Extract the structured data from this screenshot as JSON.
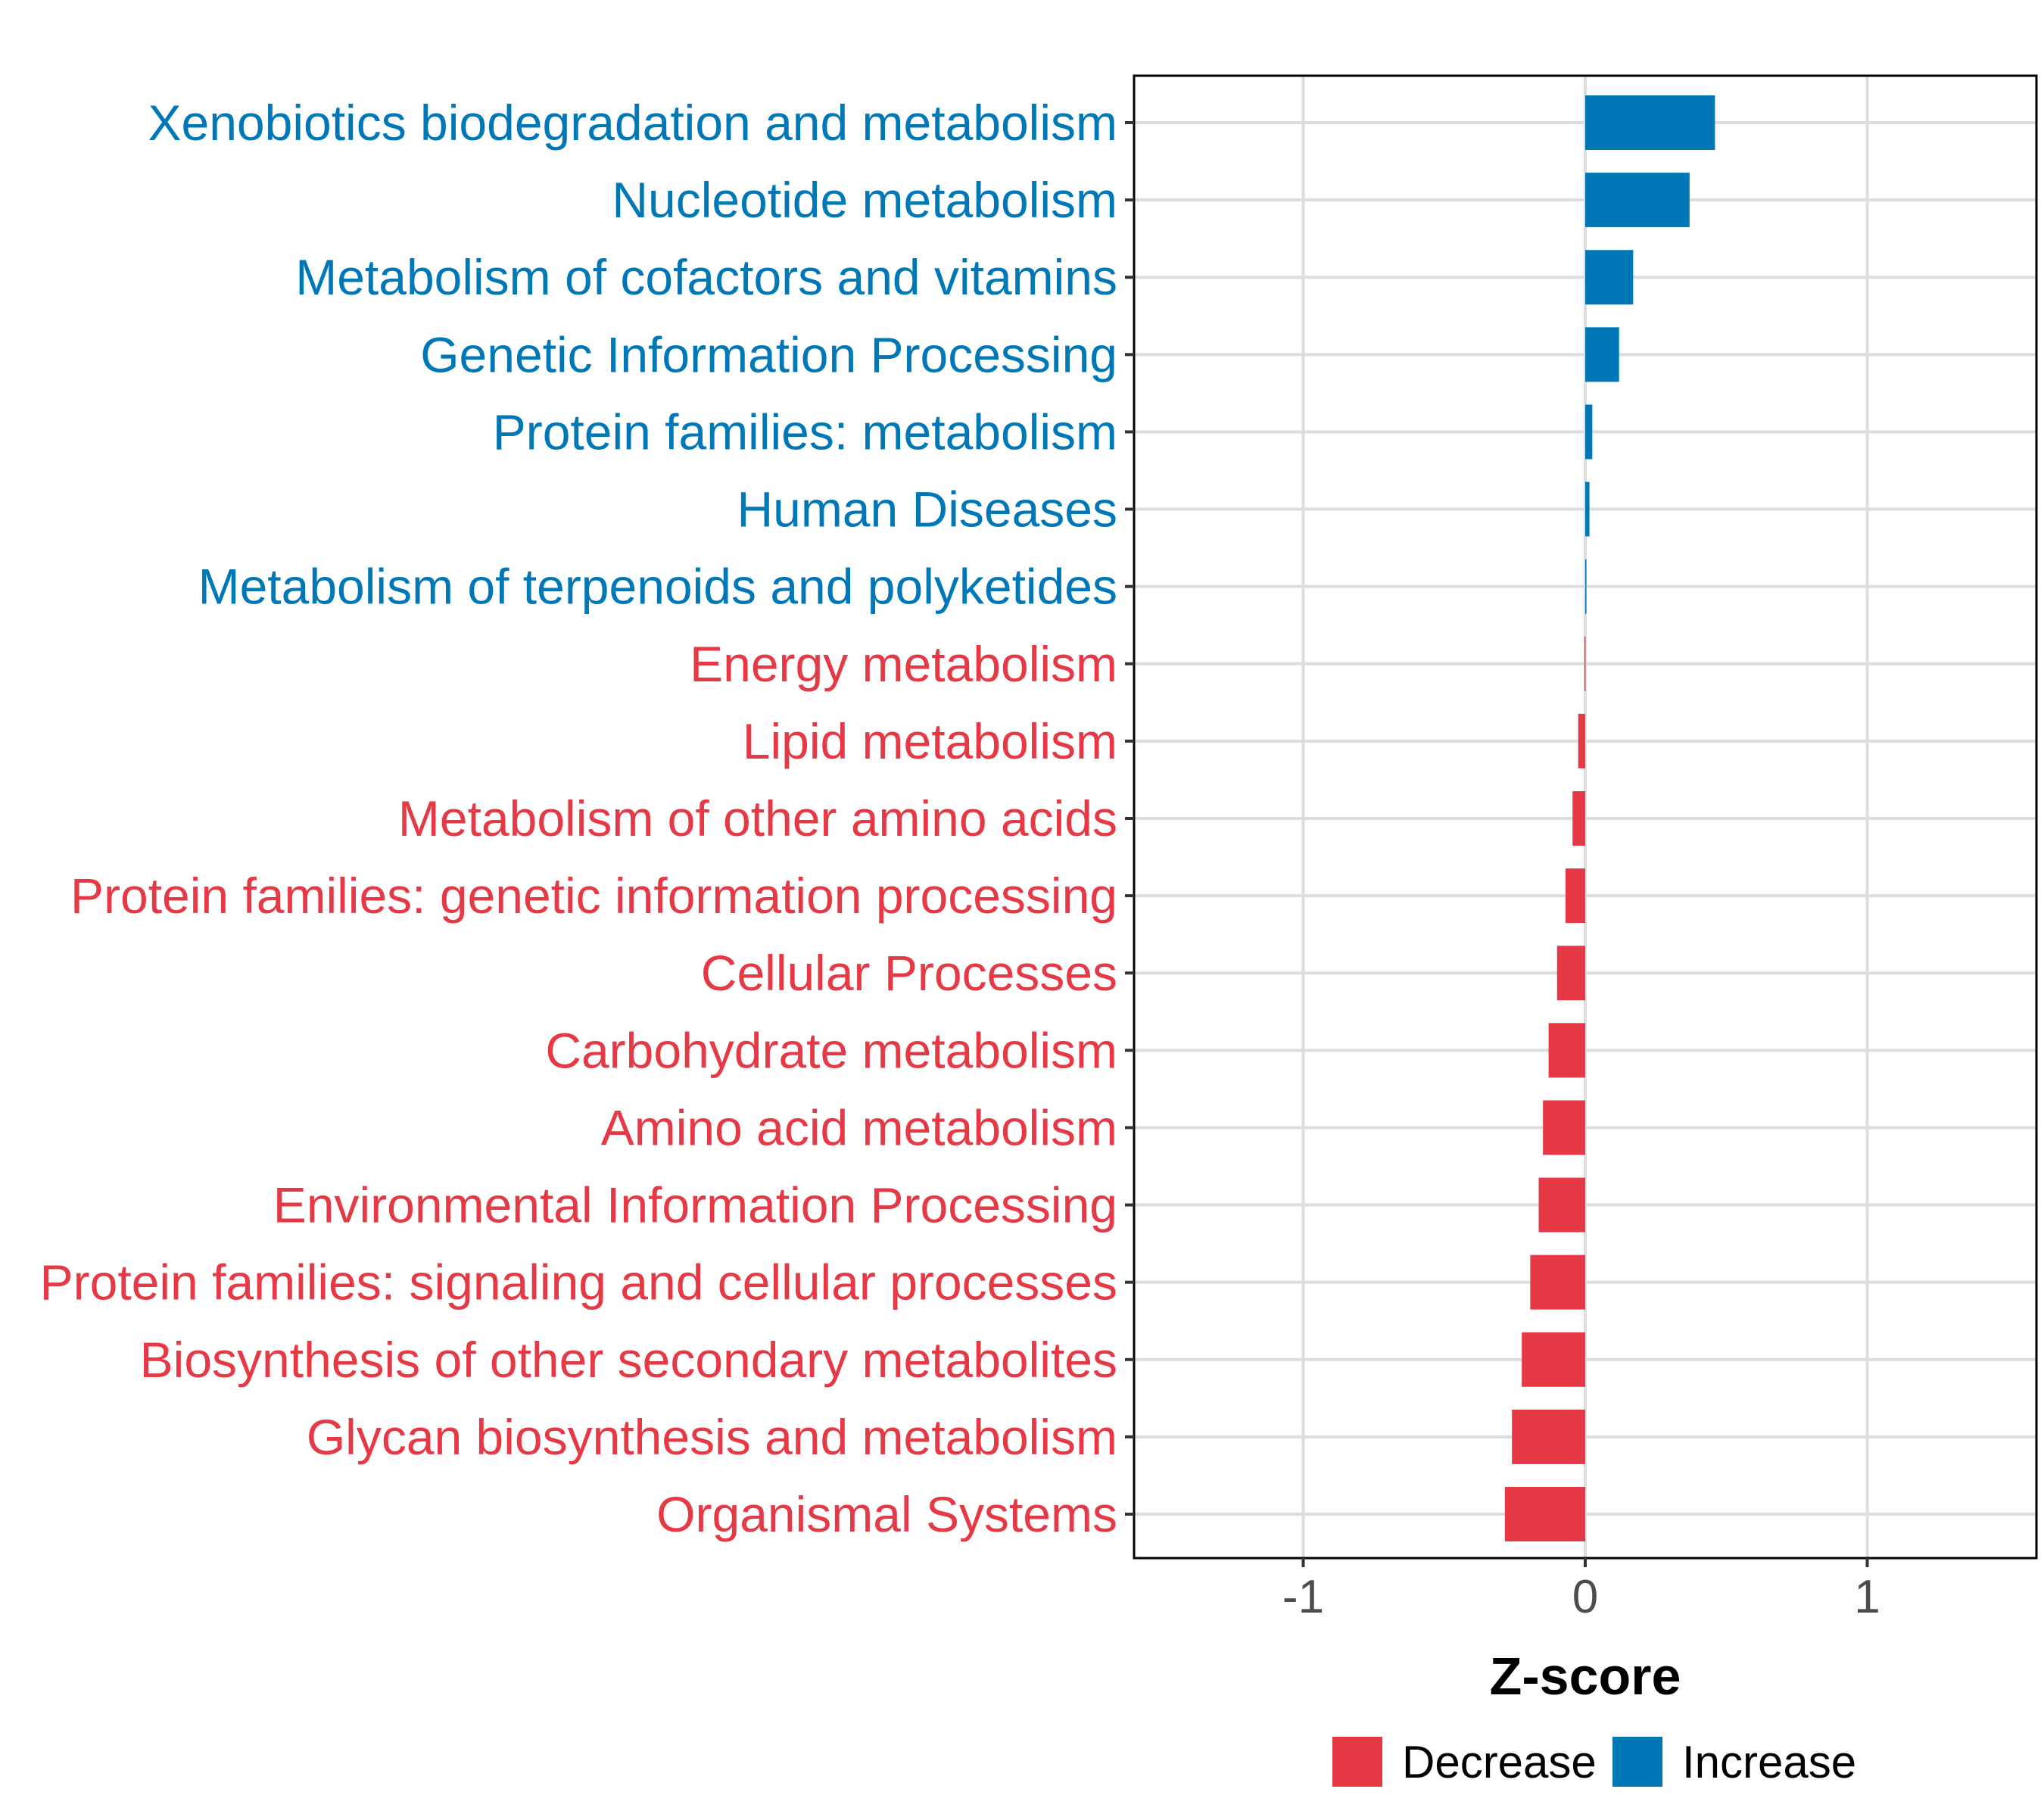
{
  "chart_data": {
    "type": "bar",
    "orientation": "horizontal",
    "xlabel": "Z-score",
    "xlim": [
      -1.6,
      1.6
    ],
    "xticks": [
      -1,
      0,
      1
    ],
    "xtick_labels": [
      "-1",
      "0",
      "1"
    ],
    "grid": true,
    "categories": [
      "Xenobiotics biodegradation and metabolism",
      "Nucleotide metabolism",
      "Metabolism of cofactors and vitamins",
      "Genetic Information Processing",
      "Protein families: metabolism",
      "Human Diseases",
      "Metabolism of terpenoids and polyketides",
      "Energy metabolism",
      "Lipid metabolism",
      "Metabolism of other amino acids",
      "Protein families: genetic information processing",
      "Cellular Processes",
      "Carbohydrate metabolism",
      "Amino acid metabolism",
      "Environmental Information Processing",
      "Protein families: signaling and cellular processes",
      "Biosynthesis of other secondary metabolites",
      "Glycan biosynthesis and metabolism",
      "Organismal Systems"
    ],
    "values": [
      0.46,
      0.37,
      0.17,
      0.12,
      0.025,
      0.015,
      0.003,
      -0.003,
      -0.025,
      -0.045,
      -0.07,
      -0.1,
      -0.13,
      -0.15,
      -0.165,
      -0.195,
      -0.225,
      -0.26,
      -0.285
    ],
    "series_groups": [
      "Increase",
      "Increase",
      "Increase",
      "Increase",
      "Increase",
      "Increase",
      "Increase",
      "Decrease",
      "Decrease",
      "Decrease",
      "Decrease",
      "Decrease",
      "Decrease",
      "Decrease",
      "Decrease",
      "Decrease",
      "Decrease",
      "Decrease",
      "Decrease"
    ],
    "legend": {
      "position": "bottom",
      "entries": [
        {
          "label": "Decrease",
          "color": "#E63946"
        },
        {
          "label": "Increase",
          "color": "#0077B6"
        }
      ]
    }
  }
}
